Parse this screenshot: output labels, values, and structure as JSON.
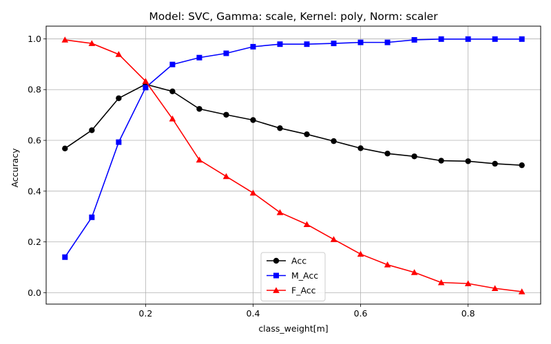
{
  "chart_data": {
    "type": "line",
    "title": "Model: SVC, Gamma: scale, Kernel: poly, Norm: scaler",
    "xlabel": "class_weight[m]",
    "ylabel": "Accuracy",
    "xlim": [
      0.015,
      0.935
    ],
    "ylim": [
      -0.045,
      1.05
    ],
    "xticks": [
      0.2,
      0.4,
      0.6,
      0.8
    ],
    "xtick_labels": [
      "0.2",
      "0.4",
      "0.6",
      "0.8"
    ],
    "yticks": [
      0.0,
      0.2,
      0.4,
      0.6,
      0.8,
      1.0
    ],
    "ytick_labels": [
      "0.0",
      "0.2",
      "0.4",
      "0.6",
      "0.8",
      "1.0"
    ],
    "grid": true,
    "legend_position": "lower-center",
    "x": [
      0.05,
      0.1,
      0.15,
      0.2,
      0.25,
      0.3,
      0.35,
      0.4,
      0.45,
      0.5,
      0.55,
      0.6,
      0.65,
      0.7,
      0.75,
      0.8,
      0.85,
      0.9
    ],
    "series": [
      {
        "name": "Acc",
        "color": "#000000",
        "marker": "circle",
        "values": [
          0.568,
          0.64,
          0.766,
          0.821,
          0.793,
          0.724,
          0.701,
          0.68,
          0.648,
          0.624,
          0.597,
          0.569,
          0.548,
          0.537,
          0.52,
          0.518,
          0.508,
          0.502
        ]
      },
      {
        "name": "M_Acc",
        "color": "#0000ff",
        "marker": "square",
        "values": [
          0.14,
          0.297,
          0.593,
          0.808,
          0.899,
          0.926,
          0.943,
          0.969,
          0.979,
          0.979,
          0.982,
          0.986,
          0.986,
          0.996,
          0.999,
          0.999,
          0.999,
          0.999
        ]
      },
      {
        "name": "F_Acc",
        "color": "#ff0000",
        "marker": "triangle",
        "values": [
          0.996,
          0.982,
          0.939,
          0.833,
          0.685,
          0.523,
          0.458,
          0.393,
          0.316,
          0.269,
          0.21,
          0.152,
          0.11,
          0.08,
          0.04,
          0.036,
          0.017,
          0.004
        ]
      }
    ]
  }
}
